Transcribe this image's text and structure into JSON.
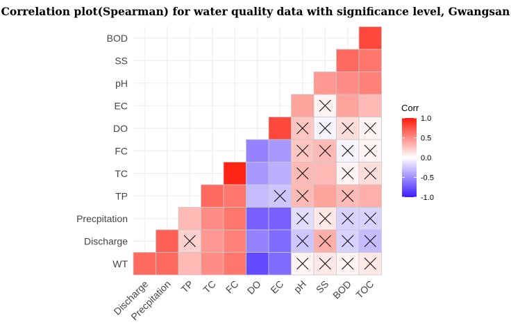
{
  "chart_data": {
    "type": "heatmap",
    "title": "Correlation plot(Spearman) for water quality data with significance level, Gwangsan",
    "x_categories": [
      "Discharge",
      "Precpitation",
      "TP",
      "TC",
      "FC",
      "DO",
      "EC",
      "pH",
      "SS",
      "BOD",
      "TOC"
    ],
    "y_categories": [
      "WT",
      "Discharge",
      "Precpitation",
      "TP",
      "TC",
      "FC",
      "DO",
      "EC",
      "pH",
      "SS",
      "BOD"
    ],
    "cells": [
      {
        "y": "WT",
        "x": "Discharge",
        "value": 0.65,
        "insignificant": false
      },
      {
        "y": "WT",
        "x": "Precpitation",
        "value": 0.65,
        "insignificant": false
      },
      {
        "y": "WT",
        "x": "TP",
        "value": 0.3,
        "insignificant": false
      },
      {
        "y": "WT",
        "x": "TC",
        "value": 0.5,
        "insignificant": false
      },
      {
        "y": "WT",
        "x": "FC",
        "value": 0.6,
        "insignificant": false
      },
      {
        "y": "WT",
        "x": "DO",
        "value": -0.8,
        "insignificant": false
      },
      {
        "y": "WT",
        "x": "EC",
        "value": -0.65,
        "insignificant": false
      },
      {
        "y": "WT",
        "x": "pH",
        "value": 0.05,
        "insignificant": true
      },
      {
        "y": "WT",
        "x": "SS",
        "value": 0.1,
        "insignificant": true
      },
      {
        "y": "WT",
        "x": "BOD",
        "value": 0.05,
        "insignificant": true
      },
      {
        "y": "WT",
        "x": "TOC",
        "value": 0.1,
        "insignificant": true
      },
      {
        "y": "Discharge",
        "x": "Precpitation",
        "value": 0.7,
        "insignificant": false
      },
      {
        "y": "Discharge",
        "x": "TP",
        "value": 0.2,
        "insignificant": true
      },
      {
        "y": "Discharge",
        "x": "TC",
        "value": 0.45,
        "insignificant": false
      },
      {
        "y": "Discharge",
        "x": "FC",
        "value": 0.55,
        "insignificant": false
      },
      {
        "y": "Discharge",
        "x": "DO",
        "value": -0.55,
        "insignificant": false
      },
      {
        "y": "Discharge",
        "x": "EC",
        "value": -0.65,
        "insignificant": false
      },
      {
        "y": "Discharge",
        "x": "pH",
        "value": -0.25,
        "insignificant": true
      },
      {
        "y": "Discharge",
        "x": "SS",
        "value": 0.35,
        "insignificant": true
      },
      {
        "y": "Discharge",
        "x": "BOD",
        "value": -0.2,
        "insignificant": true
      },
      {
        "y": "Discharge",
        "x": "TOC",
        "value": -0.3,
        "insignificant": true
      },
      {
        "y": "Precpitation",
        "x": "TP",
        "value": 0.3,
        "insignificant": false
      },
      {
        "y": "Precpitation",
        "x": "TC",
        "value": 0.5,
        "insignificant": false
      },
      {
        "y": "Precpitation",
        "x": "FC",
        "value": 0.6,
        "insignificant": false
      },
      {
        "y": "Precpitation",
        "x": "DO",
        "value": -0.7,
        "insignificant": false
      },
      {
        "y": "Precpitation",
        "x": "EC",
        "value": -0.7,
        "insignificant": false
      },
      {
        "y": "Precpitation",
        "x": "pH",
        "value": -0.15,
        "insignificant": true
      },
      {
        "y": "Precpitation",
        "x": "SS",
        "value": 0.1,
        "insignificant": true
      },
      {
        "y": "Precpitation",
        "x": "BOD",
        "value": -0.2,
        "insignificant": true
      },
      {
        "y": "Precpitation",
        "x": "TOC",
        "value": -0.2,
        "insignificant": true
      },
      {
        "y": "TP",
        "x": "TC",
        "value": 0.65,
        "insignificant": false
      },
      {
        "y": "TP",
        "x": "FC",
        "value": 0.6,
        "insignificant": false
      },
      {
        "y": "TP",
        "x": "DO",
        "value": -0.3,
        "insignificant": false
      },
      {
        "y": "TP",
        "x": "EC",
        "value": -0.25,
        "insignificant": true
      },
      {
        "y": "TP",
        "x": "pH",
        "value": 0.3,
        "insignificant": true
      },
      {
        "y": "TP",
        "x": "SS",
        "value": 0.4,
        "insignificant": false
      },
      {
        "y": "TP",
        "x": "BOD",
        "value": 0.3,
        "insignificant": true
      },
      {
        "y": "TP",
        "x": "TOC",
        "value": 0.35,
        "insignificant": false
      },
      {
        "y": "TC",
        "x": "FC",
        "value": 0.95,
        "insignificant": false
      },
      {
        "y": "TC",
        "x": "DO",
        "value": -0.45,
        "insignificant": false
      },
      {
        "y": "TC",
        "x": "EC",
        "value": -0.35,
        "insignificant": false
      },
      {
        "y": "TC",
        "x": "pH",
        "value": 0.3,
        "insignificant": true
      },
      {
        "y": "TC",
        "x": "SS",
        "value": 0.3,
        "insignificant": false
      },
      {
        "y": "TC",
        "x": "BOD",
        "value": 0.05,
        "insignificant": true
      },
      {
        "y": "TC",
        "x": "TOC",
        "value": 0.15,
        "insignificant": true
      },
      {
        "y": "FC",
        "x": "DO",
        "value": -0.55,
        "insignificant": false
      },
      {
        "y": "FC",
        "x": "EC",
        "value": -0.45,
        "insignificant": false
      },
      {
        "y": "FC",
        "x": "pH",
        "value": 0.25,
        "insignificant": true
      },
      {
        "y": "FC",
        "x": "SS",
        "value": 0.3,
        "insignificant": true
      },
      {
        "y": "FC",
        "x": "BOD",
        "value": -0.05,
        "insignificant": true
      },
      {
        "y": "FC",
        "x": "TOC",
        "value": 0.05,
        "insignificant": true
      },
      {
        "y": "DO",
        "x": "EC",
        "value": 0.8,
        "insignificant": false
      },
      {
        "y": "DO",
        "x": "pH",
        "value": 0.25,
        "insignificant": true
      },
      {
        "y": "DO",
        "x": "SS",
        "value": -0.05,
        "insignificant": true
      },
      {
        "y": "DO",
        "x": "BOD",
        "value": 0.15,
        "insignificant": true
      },
      {
        "y": "DO",
        "x": "TOC",
        "value": 0.05,
        "insignificant": true
      },
      {
        "y": "EC",
        "x": "pH",
        "value": 0.4,
        "insignificant": false
      },
      {
        "y": "EC",
        "x": "SS",
        "value": 0.05,
        "insignificant": true
      },
      {
        "y": "EC",
        "x": "BOD",
        "value": 0.4,
        "insignificant": false
      },
      {
        "y": "EC",
        "x": "TOC",
        "value": 0.3,
        "insignificant": false
      },
      {
        "y": "pH",
        "x": "SS",
        "value": 0.45,
        "insignificant": false
      },
      {
        "y": "pH",
        "x": "BOD",
        "value": 0.5,
        "insignificant": false
      },
      {
        "y": "pH",
        "x": "TOC",
        "value": 0.55,
        "insignificant": false
      },
      {
        "y": "SS",
        "x": "BOD",
        "value": 0.65,
        "insignificant": false
      },
      {
        "y": "SS",
        "x": "TOC",
        "value": 0.6,
        "insignificant": false
      },
      {
        "y": "BOD",
        "x": "TOC",
        "value": 0.8,
        "insignificant": false
      }
    ],
    "color_scale": {
      "low": "#3c1cff",
      "mid": "#ffffff",
      "high": "#ff1a0a",
      "min": -1.0,
      "max": 1.0
    },
    "legend": {
      "title": "Corr",
      "position": "right",
      "ticks": [
        1.0,
        0.5,
        0.0,
        -0.5,
        -1.0
      ],
      "tick_labels": [
        "1.0",
        "0.5",
        "0.0",
        "-0.5",
        "-1.0"
      ]
    },
    "grid": true
  }
}
